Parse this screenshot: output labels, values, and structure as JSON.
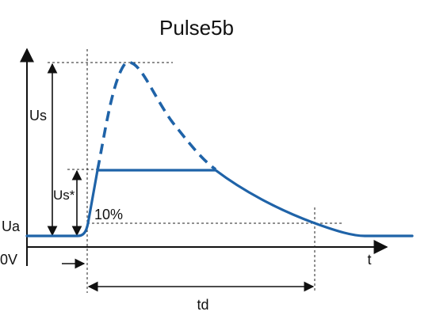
{
  "title": "Pulse5b",
  "labels": {
    "us": "Us",
    "us_star": "Us*",
    "ua": "Ua",
    "zero_v": "0V",
    "ten_percent": "10%",
    "td": "td",
    "t": "t"
  },
  "colors": {
    "curve": "#1f63a8",
    "ink": "#111111"
  }
}
